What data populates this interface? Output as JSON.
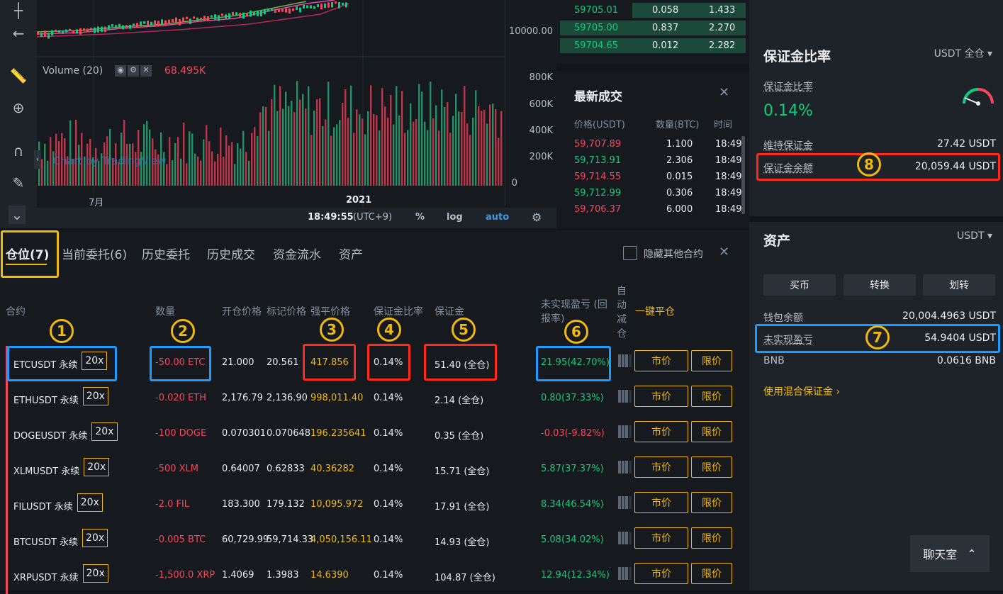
{
  "chart": {
    "price_axis_label": "10000.00",
    "volume_title": "Volume (20)",
    "volume_value": "68.495K",
    "volume_ticks": [
      "800K",
      "600K",
      "400K",
      "200K",
      "0"
    ],
    "x_labels": [
      "7月",
      "2021"
    ],
    "watermark": "Chart by TradingView",
    "time": "18:49:55",
    "timezone": "(UTC+9)",
    "percent_label": "%",
    "log_label": "log",
    "auto_label": "auto"
  },
  "orderbook": {
    "rows": [
      {
        "price": "59705.01",
        "qty": "0.058",
        "total": "1.433"
      },
      {
        "price": "59705.00",
        "qty": "0.837",
        "total": "2.270"
      },
      {
        "price": "59704.65",
        "qty": "0.012",
        "total": "2.282"
      }
    ]
  },
  "trades": {
    "title": "最新成交",
    "col_price": "价格(USDT)",
    "col_qty": "数量(BTC)",
    "col_time": "时间",
    "rows": [
      {
        "price": "59,707.89",
        "qty": "1.100",
        "time": "18:49",
        "side": "sell"
      },
      {
        "price": "59,713.91",
        "qty": "2.306",
        "time": "18:49",
        "side": "buy"
      },
      {
        "price": "59,714.55",
        "qty": "0.015",
        "time": "18:49",
        "side": "sell"
      },
      {
        "price": "59,712.99",
        "qty": "0.306",
        "time": "18:49",
        "side": "buy"
      },
      {
        "price": "59,706.37",
        "qty": "6.000",
        "time": "18:49",
        "side": "sell"
      }
    ]
  },
  "tabs": {
    "positions": "仓位(7)",
    "open_orders": "当前委托(6)",
    "order_history": "历史委托",
    "trade_history": "历史成交",
    "funding": "资金流水",
    "assets": "资产",
    "hide_other": "隐藏其他合约"
  },
  "headers": {
    "contract": "合约",
    "size": "数量",
    "entry_price": "开仓价格",
    "mark_price": "标记价格",
    "liq_price": "强平价格",
    "margin_ratio": "保证金比率",
    "margin": "保证金",
    "pnl_line1": "未实现盈亏 (回",
    "pnl_line2": "报率)",
    "adl_1": "自",
    "adl_2": "动",
    "adl_3": "减",
    "adl_4": "仓",
    "close_all": "一键平仓"
  },
  "positions": [
    {
      "symbol": "ETCUSDT 永续",
      "leverage": "20x",
      "size": "-50.00 ETC",
      "entry": "21.000",
      "mark": "20.561",
      "liq": "417.856",
      "ratio": "0.14%",
      "margin": "51.40 (全仓)",
      "pnl": "21.95(42.70%)",
      "pnl_sign": "pos",
      "market": "市价",
      "limit": "限价"
    },
    {
      "symbol": "ETHUSDT 永续",
      "leverage": "20x",
      "size": "-0.020 ETH",
      "entry": "2,176.79",
      "mark": "2,136.90",
      "liq": "998,011.40",
      "ratio": "0.14%",
      "margin": "2.14 (全仓)",
      "pnl": "0.80(37.33%)",
      "pnl_sign": "pos",
      "market": "市价",
      "limit": "限价"
    },
    {
      "symbol": "DOGEUSDT 永续",
      "leverage": "20x",
      "size": "-100 DOGE",
      "entry": "0.070301",
      "mark": "0.070648",
      "liq": "196.235641",
      "ratio": "0.14%",
      "margin": "0.35 (全仓)",
      "pnl": "-0.03(-9.82%)",
      "pnl_sign": "neg",
      "market": "市价",
      "limit": "限价"
    },
    {
      "symbol": "XLMUSDT 永续",
      "leverage": "20x",
      "size": "-500 XLM",
      "entry": "0.64007",
      "mark": "0.62833",
      "liq": "40.36282",
      "ratio": "0.14%",
      "margin": "15.71 (全仓)",
      "pnl": "5.87(37.37%)",
      "pnl_sign": "pos",
      "market": "市价",
      "limit": "限价"
    },
    {
      "symbol": "FILUSDT 永续",
      "leverage": "20x",
      "size": "-2.0 FIL",
      "entry": "183.300",
      "mark": "179.132",
      "liq": "10,095.972",
      "ratio": "0.14%",
      "margin": "17.91 (全仓)",
      "pnl": "8.34(46.54%)",
      "pnl_sign": "pos",
      "market": "市价",
      "limit": "限价"
    },
    {
      "symbol": "BTCUSDT 永续",
      "leverage": "20x",
      "size": "-0.005 BTC",
      "entry": "60,729.99",
      "mark": "59,714.33",
      "liq": "4,050,156.11",
      "ratio": "0.14%",
      "margin": "14.93 (全仓)",
      "pnl": "5.08(34.02%)",
      "pnl_sign": "pos",
      "market": "市价",
      "limit": "限价"
    },
    {
      "symbol": "XRPUSDT 永续",
      "leverage": "20x",
      "size": "-1,500.0 XRP",
      "entry": "1.4069",
      "mark": "1.3983",
      "liq": "14.6390",
      "ratio": "0.14%",
      "margin": "104.87 (全仓)",
      "pnl": "12.94(12.34%)",
      "pnl_sign": "pos",
      "market": "市价",
      "limit": "限价"
    }
  ],
  "right": {
    "margin_title": "保证金比率",
    "margin_mode": "USDT 全仓",
    "margin_ratio_label": "保证金比率",
    "margin_ratio_value": "0.14%",
    "maint_label": "维持保证金",
    "maint_value": "27.42 USDT",
    "balance_label": "保证金余额",
    "balance_value": "20,059.44 USDT",
    "assets_title": "资产",
    "assets_currency": "USDT",
    "buy_label": "买币",
    "convert_label": "转换",
    "transfer_label": "划转",
    "wallet_label": "钱包余额",
    "wallet_value": "20,004.4963 USDT",
    "upnl_label": "未实现盈亏",
    "upnl_value": "54.9404 USDT",
    "bnb_label": "BNB",
    "bnb_value": "0.0616 BNB",
    "mixed_margin": "使用混合保证金",
    "chat": "聊天室"
  },
  "annotations": [
    "1",
    "2",
    "3",
    "4",
    "5",
    "6",
    "7",
    "8"
  ],
  "colors": {
    "accent": "#f0b90b",
    "green": "#0ecb81",
    "red": "#f6465d",
    "blue_box": "#1e9bff",
    "red_box": "#ff2a1a",
    "bg": "#161a1e"
  }
}
